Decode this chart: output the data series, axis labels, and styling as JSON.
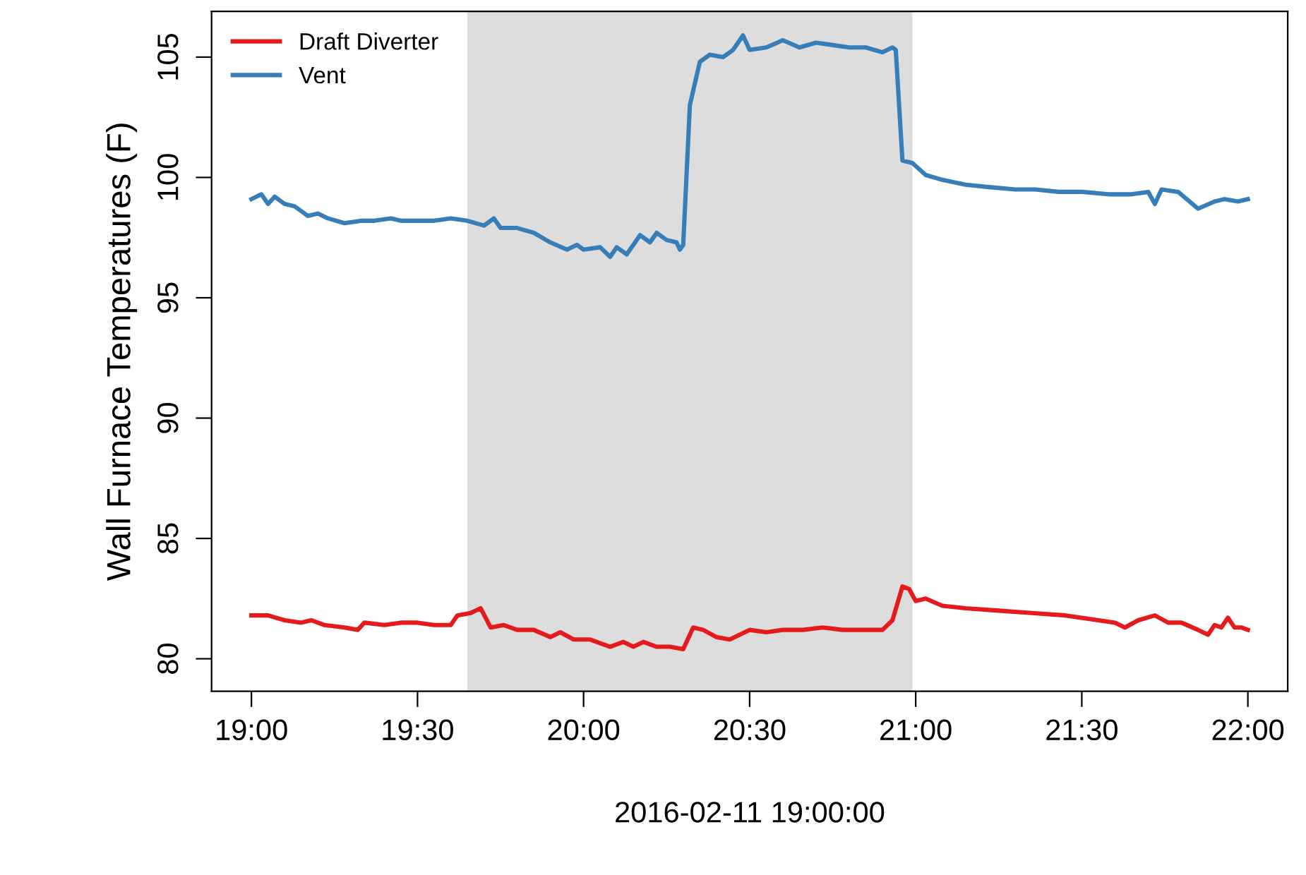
{
  "chart_data": {
    "type": "line",
    "xlabel": "2016-02-11 19:00:00",
    "ylabel": "Wall Furnace Temperatures (F)",
    "series": [
      {
        "name": "Draft Diverter",
        "color": "#e41a1c",
        "x": [
          19.0,
          19.05,
          19.1,
          19.15,
          19.18,
          19.22,
          19.28,
          19.32,
          19.34,
          19.4,
          19.45,
          19.5,
          19.55,
          19.6,
          19.62,
          19.66,
          19.69,
          19.72,
          19.76,
          19.8,
          19.85,
          19.9,
          19.93,
          19.97,
          20.02,
          20.08,
          20.12,
          20.15,
          20.18,
          20.22,
          20.26,
          20.3,
          20.33,
          20.36,
          20.4,
          20.44,
          20.5,
          20.55,
          20.6,
          20.66,
          20.72,
          20.78,
          20.84,
          20.9,
          20.93,
          20.96,
          20.98,
          21.0,
          21.03,
          21.08,
          21.15,
          21.25,
          21.35,
          21.45,
          21.55,
          21.6,
          21.63,
          21.67,
          21.72,
          21.76,
          21.8,
          21.85,
          21.88,
          21.9,
          21.92,
          21.94,
          21.96,
          21.98,
          22.0
        ],
        "values": [
          81.8,
          81.8,
          81.6,
          81.5,
          81.6,
          81.4,
          81.3,
          81.2,
          81.5,
          81.4,
          81.5,
          81.5,
          81.4,
          81.4,
          81.8,
          81.9,
          82.1,
          81.3,
          81.4,
          81.2,
          81.2,
          80.9,
          81.1,
          80.8,
          80.8,
          80.5,
          80.7,
          80.5,
          80.7,
          80.5,
          80.5,
          80.4,
          81.3,
          81.2,
          80.9,
          80.8,
          81.2,
          81.1,
          81.2,
          81.2,
          81.3,
          81.2,
          81.2,
          81.2,
          81.6,
          83.0,
          82.9,
          82.4,
          82.5,
          82.2,
          82.1,
          82.0,
          81.9,
          81.8,
          81.6,
          81.5,
          81.3,
          81.6,
          81.8,
          81.5,
          81.5,
          81.2,
          81.0,
          81.4,
          81.3,
          81.7,
          81.3,
          81.3,
          81.2
        ]
      },
      {
        "name": "Vent",
        "color": "#377eb8",
        "x": [
          19.0,
          19.03,
          19.05,
          19.07,
          19.1,
          19.13,
          19.17,
          19.2,
          19.23,
          19.28,
          19.33,
          19.37,
          19.42,
          19.45,
          19.55,
          19.6,
          19.65,
          19.7,
          19.73,
          19.75,
          19.8,
          19.85,
          19.9,
          19.95,
          19.98,
          20.0,
          20.05,
          20.08,
          20.1,
          20.13,
          20.17,
          20.2,
          20.22,
          20.25,
          20.28,
          20.29,
          20.3,
          20.32,
          20.35,
          20.38,
          20.42,
          20.45,
          20.48,
          20.5,
          20.55,
          20.6,
          20.65,
          20.7,
          20.75,
          20.8,
          20.85,
          20.9,
          20.93,
          20.94,
          20.96,
          20.99,
          21.03,
          21.08,
          21.15,
          21.22,
          21.3,
          21.36,
          21.43,
          21.5,
          21.58,
          21.65,
          21.7,
          21.72,
          21.74,
          21.79,
          21.85,
          21.9,
          21.93,
          21.97,
          22.0
        ],
        "values": [
          99.1,
          99.3,
          98.9,
          99.2,
          98.9,
          98.8,
          98.4,
          98.5,
          98.3,
          98.1,
          98.2,
          98.2,
          98.3,
          98.2,
          98.2,
          98.3,
          98.2,
          98.0,
          98.3,
          97.9,
          97.9,
          97.7,
          97.3,
          97.0,
          97.2,
          97.0,
          97.1,
          96.7,
          97.1,
          96.8,
          97.6,
          97.3,
          97.7,
          97.4,
          97.3,
          97.0,
          97.2,
          103.0,
          104.8,
          105.1,
          105.0,
          105.3,
          105.9,
          105.3,
          105.4,
          105.7,
          105.4,
          105.6,
          105.5,
          105.4,
          105.4,
          105.2,
          105.4,
          105.3,
          100.7,
          100.6,
          100.1,
          99.9,
          99.7,
          99.6,
          99.5,
          99.5,
          99.4,
          99.4,
          99.3,
          99.3,
          99.4,
          98.9,
          99.5,
          99.4,
          98.7,
          99.0,
          99.1,
          99.0,
          99.1
        ]
      }
    ],
    "bands": [
      {
        "axis": "x",
        "from": 19.65,
        "to": 20.99,
        "color": "#dddddd"
      }
    ],
    "xlim": [
      18.88,
      22.12
    ],
    "ylim": [
      78.65,
      106.9
    ],
    "xticks": [
      {
        "value": 19.0,
        "label": "19:00"
      },
      {
        "value": 19.5,
        "label": "19:30"
      },
      {
        "value": 20.0,
        "label": "20:00"
      },
      {
        "value": 20.5,
        "label": "20:30"
      },
      {
        "value": 21.0,
        "label": "21:00"
      },
      {
        "value": 21.5,
        "label": "21:30"
      },
      {
        "value": 22.0,
        "label": "22:00"
      }
    ],
    "yticks": [
      80,
      85,
      90,
      95,
      100,
      105
    ],
    "legend": "top left",
    "grid": false
  }
}
